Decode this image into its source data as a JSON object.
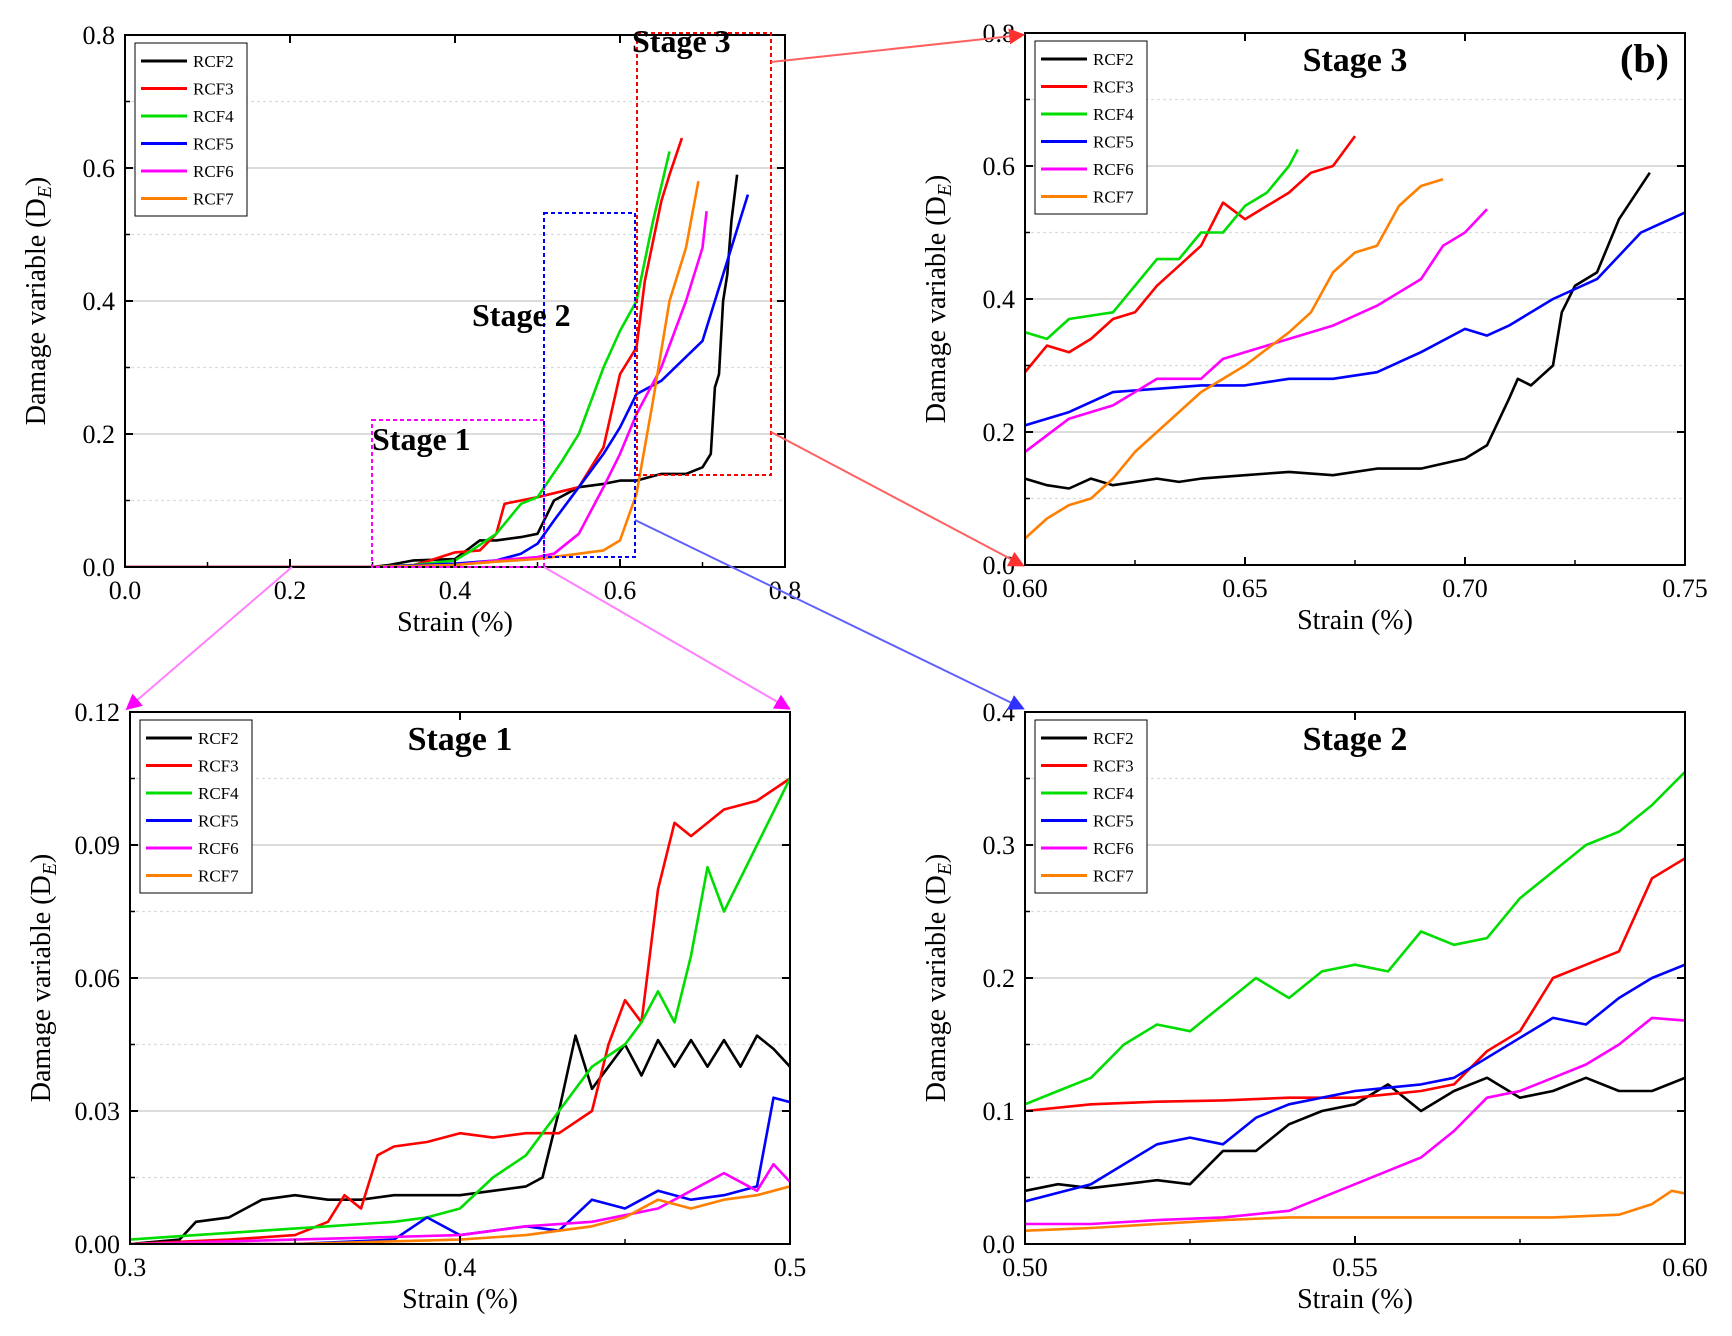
{
  "figure": {
    "panel_tag": "(b)",
    "stage_labels": [
      "Stage 1",
      "Stage 2",
      "Stage 3"
    ]
  },
  "series_colors": {
    "RCF2": "#000000",
    "RCF3": "#ff0000",
    "RCF4": "#00dd00",
    "RCF5": "#0000ff",
    "RCF6": "#ff00ff",
    "RCF7": "#ff8000"
  },
  "chart_data": [
    {
      "id": "overview",
      "type": "line",
      "title": "",
      "xlabel": "Strain (%)",
      "ylabel": "Damage variable (D",
      "ylabel_sub": "E",
      "xlim": [
        0.0,
        0.8
      ],
      "ylim": [
        0.0,
        0.8
      ],
      "xticks": [
        "0.0",
        "0.2",
        "0.4",
        "0.6",
        "0.8"
      ],
      "yticks": [
        "0.0",
        "0.2",
        "0.4",
        "0.6",
        "0.8"
      ],
      "grid": true,
      "legend_position": "top-left",
      "series": [
        {
          "name": "RCF2",
          "x": [
            0,
            0.3,
            0.32,
            0.35,
            0.4,
            0.43,
            0.45,
            0.48,
            0.5,
            0.52,
            0.55,
            0.58,
            0.6,
            0.62,
            0.65,
            0.68,
            0.7,
            0.71,
            0.715,
            0.72,
            0.725,
            0.73,
            0.735,
            0.742
          ],
          "y": [
            0,
            0,
            0.003,
            0.01,
            0.012,
            0.04,
            0.04,
            0.045,
            0.05,
            0.1,
            0.12,
            0.125,
            0.13,
            0.13,
            0.14,
            0.14,
            0.15,
            0.17,
            0.27,
            0.29,
            0.4,
            0.44,
            0.52,
            0.59
          ]
        },
        {
          "name": "RCF3",
          "x": [
            0,
            0.3,
            0.35,
            0.37,
            0.4,
            0.43,
            0.45,
            0.46,
            0.5,
            0.55,
            0.58,
            0.6,
            0.62,
            0.63,
            0.65,
            0.66,
            0.675
          ],
          "y": [
            0,
            0,
            0.003,
            0.01,
            0.022,
            0.025,
            0.05,
            0.095,
            0.105,
            0.12,
            0.18,
            0.29,
            0.33,
            0.43,
            0.55,
            0.59,
            0.645
          ]
        },
        {
          "name": "RCF4",
          "x": [
            0,
            0.3,
            0.35,
            0.4,
            0.42,
            0.45,
            0.48,
            0.5,
            0.53,
            0.55,
            0.58,
            0.6,
            0.62,
            0.64,
            0.66
          ],
          "y": [
            0,
            0,
            0.003,
            0.01,
            0.025,
            0.05,
            0.095,
            0.105,
            0.16,
            0.2,
            0.3,
            0.355,
            0.4,
            0.52,
            0.625
          ]
        },
        {
          "name": "RCF5",
          "x": [
            0,
            0.3,
            0.4,
            0.45,
            0.48,
            0.5,
            0.52,
            0.55,
            0.58,
            0.6,
            0.62,
            0.65,
            0.7,
            0.72,
            0.74,
            0.755
          ],
          "y": [
            0,
            0,
            0.005,
            0.01,
            0.02,
            0.035,
            0.07,
            0.12,
            0.17,
            0.21,
            0.26,
            0.28,
            0.34,
            0.42,
            0.5,
            0.56
          ]
        },
        {
          "name": "RCF6",
          "x": [
            0,
            0.3,
            0.4,
            0.45,
            0.5,
            0.52,
            0.55,
            0.58,
            0.6,
            0.62,
            0.65,
            0.68,
            0.7,
            0.705
          ],
          "y": [
            0,
            0,
            0.003,
            0.01,
            0.015,
            0.02,
            0.05,
            0.12,
            0.17,
            0.23,
            0.3,
            0.4,
            0.48,
            0.535
          ]
        },
        {
          "name": "RCF7",
          "x": [
            0,
            0.3,
            0.4,
            0.45,
            0.5,
            0.55,
            0.58,
            0.6,
            0.62,
            0.64,
            0.66,
            0.68,
            0.695
          ],
          "y": [
            0,
            0,
            0.003,
            0.008,
            0.012,
            0.02,
            0.025,
            0.04,
            0.11,
            0.25,
            0.4,
            0.48,
            0.58
          ]
        }
      ]
    },
    {
      "id": "stage3",
      "type": "line",
      "title": "Stage 3",
      "xlabel": "Strain (%)",
      "ylabel": "Damage variable (D",
      "ylabel_sub": "E",
      "xlim": [
        0.6,
        0.75
      ],
      "ylim": [
        0.0,
        0.8
      ],
      "xticks": [
        "0.60",
        "0.65",
        "0.70",
        "0.75"
      ],
      "yticks": [
        "0.0",
        "0.2",
        "0.4",
        "0.6",
        "0.8"
      ],
      "grid": true,
      "legend_position": "top-left",
      "series": [
        {
          "name": "RCF2",
          "x": [
            0.6,
            0.605,
            0.61,
            0.615,
            0.62,
            0.63,
            0.635,
            0.64,
            0.65,
            0.66,
            0.67,
            0.68,
            0.69,
            0.7,
            0.705,
            0.71,
            0.712,
            0.715,
            0.72,
            0.722,
            0.725,
            0.73,
            0.735,
            0.742
          ],
          "y": [
            0.13,
            0.12,
            0.115,
            0.13,
            0.12,
            0.13,
            0.125,
            0.13,
            0.135,
            0.14,
            0.135,
            0.145,
            0.145,
            0.16,
            0.18,
            0.25,
            0.28,
            0.27,
            0.3,
            0.38,
            0.42,
            0.44,
            0.52,
            0.59
          ]
        },
        {
          "name": "RCF3",
          "x": [
            0.6,
            0.605,
            0.61,
            0.615,
            0.62,
            0.625,
            0.63,
            0.635,
            0.64,
            0.645,
            0.65,
            0.655,
            0.66,
            0.665,
            0.67,
            0.675
          ],
          "y": [
            0.29,
            0.33,
            0.32,
            0.34,
            0.37,
            0.38,
            0.42,
            0.45,
            0.48,
            0.545,
            0.52,
            0.54,
            0.56,
            0.59,
            0.6,
            0.645
          ]
        },
        {
          "name": "RCF4",
          "x": [
            0.6,
            0.605,
            0.61,
            0.615,
            0.62,
            0.625,
            0.63,
            0.635,
            0.64,
            0.645,
            0.65,
            0.655,
            0.66,
            0.662
          ],
          "y": [
            0.35,
            0.34,
            0.37,
            0.375,
            0.38,
            0.42,
            0.46,
            0.46,
            0.5,
            0.5,
            0.54,
            0.56,
            0.6,
            0.625
          ]
        },
        {
          "name": "RCF5",
          "x": [
            0.6,
            0.61,
            0.62,
            0.63,
            0.64,
            0.65,
            0.66,
            0.67,
            0.68,
            0.69,
            0.7,
            0.705,
            0.71,
            0.72,
            0.73,
            0.74,
            0.75
          ],
          "y": [
            0.21,
            0.23,
            0.26,
            0.265,
            0.27,
            0.27,
            0.28,
            0.28,
            0.29,
            0.32,
            0.355,
            0.345,
            0.36,
            0.4,
            0.43,
            0.5,
            0.53
          ]
        },
        {
          "name": "RCF6",
          "x": [
            0.6,
            0.61,
            0.62,
            0.63,
            0.64,
            0.645,
            0.65,
            0.66,
            0.67,
            0.68,
            0.69,
            0.695,
            0.7,
            0.705
          ],
          "y": [
            0.17,
            0.22,
            0.24,
            0.28,
            0.28,
            0.31,
            0.32,
            0.34,
            0.36,
            0.39,
            0.43,
            0.48,
            0.5,
            0.535
          ]
        },
        {
          "name": "RCF7",
          "x": [
            0.6,
            0.605,
            0.61,
            0.615,
            0.62,
            0.625,
            0.63,
            0.64,
            0.65,
            0.66,
            0.665,
            0.67,
            0.675,
            0.68,
            0.685,
            0.69,
            0.695
          ],
          "y": [
            0.04,
            0.07,
            0.09,
            0.1,
            0.13,
            0.17,
            0.2,
            0.26,
            0.3,
            0.35,
            0.38,
            0.44,
            0.47,
            0.48,
            0.54,
            0.57,
            0.58
          ]
        }
      ]
    },
    {
      "id": "stage1",
      "type": "line",
      "title": "Stage 1",
      "xlabel": "Strain (%)",
      "ylabel": "Damage variable (D",
      "ylabel_sub": "E",
      "xlim": [
        0.3,
        0.5
      ],
      "ylim": [
        0.0,
        0.12
      ],
      "xticks": [
        "0.3",
        "0.4",
        "0.5"
      ],
      "yticks": [
        "0.00",
        "0.03",
        "0.06",
        "0.09",
        "0.12"
      ],
      "grid": true,
      "legend_position": "top-left",
      "series": [
        {
          "name": "RCF2",
          "x": [
            0.3,
            0.315,
            0.32,
            0.33,
            0.34,
            0.35,
            0.36,
            0.37,
            0.38,
            0.39,
            0.4,
            0.41,
            0.42,
            0.425,
            0.43,
            0.435,
            0.44,
            0.445,
            0.45,
            0.455,
            0.46,
            0.465,
            0.47,
            0.475,
            0.48,
            0.485,
            0.49,
            0.495,
            0.5
          ],
          "y": [
            0,
            0.001,
            0.005,
            0.006,
            0.01,
            0.011,
            0.01,
            0.01,
            0.011,
            0.011,
            0.011,
            0.012,
            0.013,
            0.015,
            0.03,
            0.047,
            0.035,
            0.04,
            0.045,
            0.038,
            0.046,
            0.04,
            0.046,
            0.04,
            0.046,
            0.04,
            0.047,
            0.044,
            0.04
          ]
        },
        {
          "name": "RCF3",
          "x": [
            0.3,
            0.33,
            0.35,
            0.36,
            0.365,
            0.37,
            0.375,
            0.38,
            0.39,
            0.4,
            0.41,
            0.42,
            0.43,
            0.44,
            0.445,
            0.45,
            0.455,
            0.46,
            0.465,
            0.47,
            0.48,
            0.49,
            0.5
          ],
          "y": [
            0,
            0.001,
            0.002,
            0.005,
            0.011,
            0.008,
            0.02,
            0.022,
            0.023,
            0.025,
            0.024,
            0.025,
            0.025,
            0.03,
            0.045,
            0.055,
            0.05,
            0.08,
            0.095,
            0.092,
            0.098,
            0.1,
            0.105
          ]
        },
        {
          "name": "RCF4",
          "x": [
            0.3,
            0.32,
            0.34,
            0.36,
            0.38,
            0.39,
            0.4,
            0.41,
            0.42,
            0.43,
            0.44,
            0.45,
            0.455,
            0.46,
            0.465,
            0.47,
            0.475,
            0.48,
            0.49,
            0.5
          ],
          "y": [
            0.001,
            0.002,
            0.003,
            0.004,
            0.005,
            0.006,
            0.008,
            0.015,
            0.02,
            0.03,
            0.04,
            0.045,
            0.05,
            0.057,
            0.05,
            0.065,
            0.085,
            0.075,
            0.09,
            0.105
          ]
        },
        {
          "name": "RCF5",
          "x": [
            0.3,
            0.35,
            0.38,
            0.39,
            0.4,
            0.41,
            0.42,
            0.43,
            0.44,
            0.45,
            0.46,
            0.47,
            0.48,
            0.49,
            0.495,
            0.5
          ],
          "y": [
            0,
            0,
            0.001,
            0.006,
            0.002,
            0.003,
            0.004,
            0.003,
            0.01,
            0.008,
            0.012,
            0.01,
            0.011,
            0.013,
            0.033,
            0.032
          ]
        },
        {
          "name": "RCF6",
          "x": [
            0.3,
            0.35,
            0.4,
            0.42,
            0.44,
            0.46,
            0.47,
            0.48,
            0.49,
            0.495,
            0.5
          ],
          "y": [
            0,
            0.001,
            0.002,
            0.004,
            0.005,
            0.008,
            0.012,
            0.016,
            0.012,
            0.018,
            0.014
          ]
        },
        {
          "name": "RCF7",
          "x": [
            0.3,
            0.35,
            0.4,
            0.42,
            0.44,
            0.45,
            0.46,
            0.47,
            0.48,
            0.49,
            0.5
          ],
          "y": [
            0,
            0,
            0.001,
            0.002,
            0.004,
            0.006,
            0.01,
            0.008,
            0.01,
            0.011,
            0.013
          ]
        }
      ]
    },
    {
      "id": "stage2",
      "type": "line",
      "title": "Stage 2",
      "xlabel": "Strain (%)",
      "ylabel": "Damage variable (D",
      "ylabel_sub": "E",
      "xlim": [
        0.5,
        0.6
      ],
      "ylim": [
        0.0,
        0.4
      ],
      "xticks": [
        "0.50",
        "0.55",
        "0.60"
      ],
      "yticks": [
        "0.0",
        "0.1",
        "0.2",
        "0.3",
        "0.4"
      ],
      "grid": true,
      "legend_position": "top-left",
      "series": [
        {
          "name": "RCF2",
          "x": [
            0.5,
            0.505,
            0.51,
            0.52,
            0.525,
            0.53,
            0.535,
            0.54,
            0.545,
            0.55,
            0.555,
            0.56,
            0.565,
            0.57,
            0.575,
            0.58,
            0.585,
            0.59,
            0.595,
            0.6
          ],
          "y": [
            0.04,
            0.045,
            0.042,
            0.048,
            0.045,
            0.07,
            0.07,
            0.09,
            0.1,
            0.105,
            0.12,
            0.1,
            0.115,
            0.125,
            0.11,
            0.115,
            0.125,
            0.115,
            0.115,
            0.125
          ]
        },
        {
          "name": "RCF3",
          "x": [
            0.5,
            0.51,
            0.52,
            0.53,
            0.54,
            0.55,
            0.56,
            0.565,
            0.57,
            0.575,
            0.58,
            0.585,
            0.59,
            0.595,
            0.6
          ],
          "y": [
            0.1,
            0.105,
            0.107,
            0.108,
            0.11,
            0.11,
            0.115,
            0.12,
            0.145,
            0.16,
            0.2,
            0.21,
            0.22,
            0.275,
            0.29
          ]
        },
        {
          "name": "RCF4",
          "x": [
            0.5,
            0.505,
            0.51,
            0.515,
            0.52,
            0.525,
            0.53,
            0.535,
            0.54,
            0.545,
            0.55,
            0.555,
            0.56,
            0.565,
            0.57,
            0.575,
            0.58,
            0.585,
            0.59,
            0.595,
            0.6
          ],
          "y": [
            0.105,
            0.115,
            0.125,
            0.15,
            0.165,
            0.16,
            0.18,
            0.2,
            0.185,
            0.205,
            0.21,
            0.205,
            0.235,
            0.225,
            0.23,
            0.26,
            0.28,
            0.3,
            0.31,
            0.33,
            0.355
          ]
        },
        {
          "name": "RCF5",
          "x": [
            0.5,
            0.51,
            0.52,
            0.525,
            0.53,
            0.535,
            0.54,
            0.55,
            0.56,
            0.565,
            0.57,
            0.575,
            0.58,
            0.585,
            0.59,
            0.595,
            0.6
          ],
          "y": [
            0.032,
            0.045,
            0.075,
            0.08,
            0.075,
            0.095,
            0.105,
            0.115,
            0.12,
            0.125,
            0.14,
            0.155,
            0.17,
            0.165,
            0.185,
            0.2,
            0.21
          ]
        },
        {
          "name": "RCF6",
          "x": [
            0.5,
            0.51,
            0.52,
            0.53,
            0.54,
            0.55,
            0.555,
            0.56,
            0.565,
            0.57,
            0.575,
            0.58,
            0.585,
            0.59,
            0.595,
            0.6
          ],
          "y": [
            0.015,
            0.015,
            0.018,
            0.02,
            0.025,
            0.045,
            0.055,
            0.065,
            0.085,
            0.11,
            0.115,
            0.125,
            0.135,
            0.15,
            0.17,
            0.168
          ]
        },
        {
          "name": "RCF7",
          "x": [
            0.5,
            0.51,
            0.52,
            0.53,
            0.54,
            0.55,
            0.56,
            0.57,
            0.58,
            0.59,
            0.595,
            0.598,
            0.6
          ],
          "y": [
            0.01,
            0.012,
            0.015,
            0.018,
            0.02,
            0.02,
            0.02,
            0.02,
            0.02,
            0.022,
            0.03,
            0.04,
            0.038
          ]
        }
      ]
    }
  ]
}
